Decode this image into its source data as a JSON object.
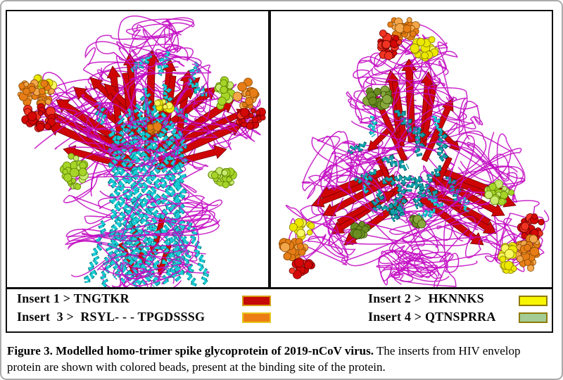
{
  "figure": {
    "caption_bold": "Figure 3. Modelled homo-trimer spike glycoprotein of 2019-nCoV virus.",
    "caption_rest": " The inserts from HIV envelop protein are shown with colored beads, present at the binding site of the protein."
  },
  "legend": {
    "entries": [
      {
        "id": "insert-1",
        "label": "Insert 1 > TNGTKR",
        "swatch_fill": "#c50808",
        "swatch_border": "#d89a12"
      },
      {
        "id": "insert-3",
        "label": "Insert  3 >  RSYL- - - TPGDSSSG",
        "swatch_fill": "#ec7d15",
        "swatch_border": "#e9c419"
      },
      {
        "id": "insert-2",
        "label": "Insert 2 >  HKNNKS",
        "swatch_fill": "#f8f500",
        "swatch_border": "#8f7a06"
      },
      {
        "id": "insert-4",
        "label": "Insert 4 > QTNSPRRA",
        "swatch_fill": "#a3cc96",
        "swatch_border": "#8f7a06"
      }
    ]
  },
  "art_colors": {
    "loop": "#c30ac3",
    "sheet": "#ce0505",
    "sheet_dark": "#740101",
    "helix_bright": "#18ccd4",
    "helix_shadow": "#077d85",
    "helix_teal": "#12a2aa",
    "helix_teal_shadow": "#04555c",
    "beads": {
      "red": {
        "b": "#d40707",
        "l": "#f03322",
        "d": "#700000"
      },
      "orange": {
        "b": "#e67d16",
        "l": "#f3a74b",
        "d": "#8a4a02"
      },
      "yellow": {
        "b": "#ece800",
        "l": "#f8f860",
        "d": "#8a8000"
      },
      "yellowgreen": {
        "b": "#a6d528",
        "l": "#c8ea6e",
        "d": "#5a7d02"
      },
      "olive": {
        "b": "#6a8e21",
        "l": "#89a93e",
        "d": "#384f08"
      }
    }
  }
}
